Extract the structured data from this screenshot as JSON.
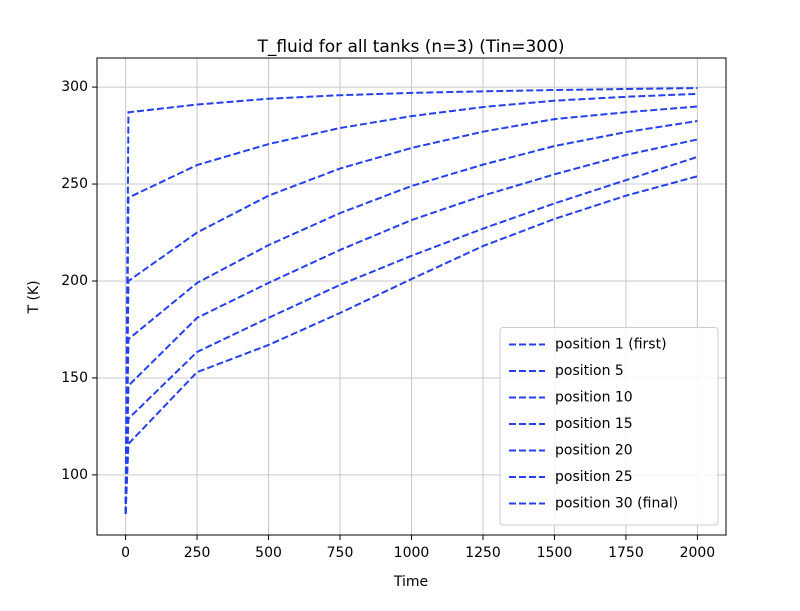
{
  "chart_data": {
    "type": "line",
    "title": "T_fluid for all tanks (n=3) (Tin=300)",
    "x_label": "Time",
    "y_label": "T (K)",
    "x": [
      0,
      10,
      250,
      500,
      750,
      1000,
      1250,
      1500,
      1750,
      2000
    ],
    "series": [
      {
        "name": "position 1 (first)",
        "color": "#2440f0",
        "values": [
          80,
          287,
          291,
          294,
          295.8,
          297,
          297.8,
          298.5,
          299,
          299.5
        ]
      },
      {
        "name": "position 5",
        "color": "#2440f0",
        "values": [
          80,
          243,
          259.8,
          270.6,
          278.9,
          285,
          289.7,
          293,
          295,
          296.5
        ]
      },
      {
        "name": "position 10",
        "color": "#2440f0",
        "values": [
          80,
          200,
          225,
          244,
          258,
          268.6,
          277,
          283.5,
          287,
          290
        ]
      },
      {
        "name": "position 15",
        "color": "#2440f0",
        "values": [
          80,
          170,
          199,
          218.5,
          235,
          249,
          260,
          269.6,
          276.8,
          282.5
        ]
      },
      {
        "name": "position 20",
        "color": "#2440f0",
        "values": [
          80,
          146,
          181,
          199,
          216,
          231.4,
          244,
          255,
          265,
          273
        ]
      },
      {
        "name": "position 25",
        "color": "#2440f0",
        "values": [
          80,
          129,
          163.4,
          181,
          198,
          213,
          227,
          240,
          252,
          264
        ]
      },
      {
        "name": "position 30 (final)",
        "color": "#2440f0",
        "values": [
          80,
          116,
          153,
          167,
          183.5,
          201,
          218,
          232,
          244,
          254
        ]
      }
    ],
    "xlim": [
      -100,
      2100
    ],
    "ylim": [
      69,
      315
    ],
    "xticks": [
      0,
      250,
      500,
      750,
      1000,
      1250,
      1500,
      1750,
      2000
    ],
    "yticks": [
      100,
      150,
      200,
      250,
      300
    ],
    "grid": true,
    "legend": "lower right"
  }
}
